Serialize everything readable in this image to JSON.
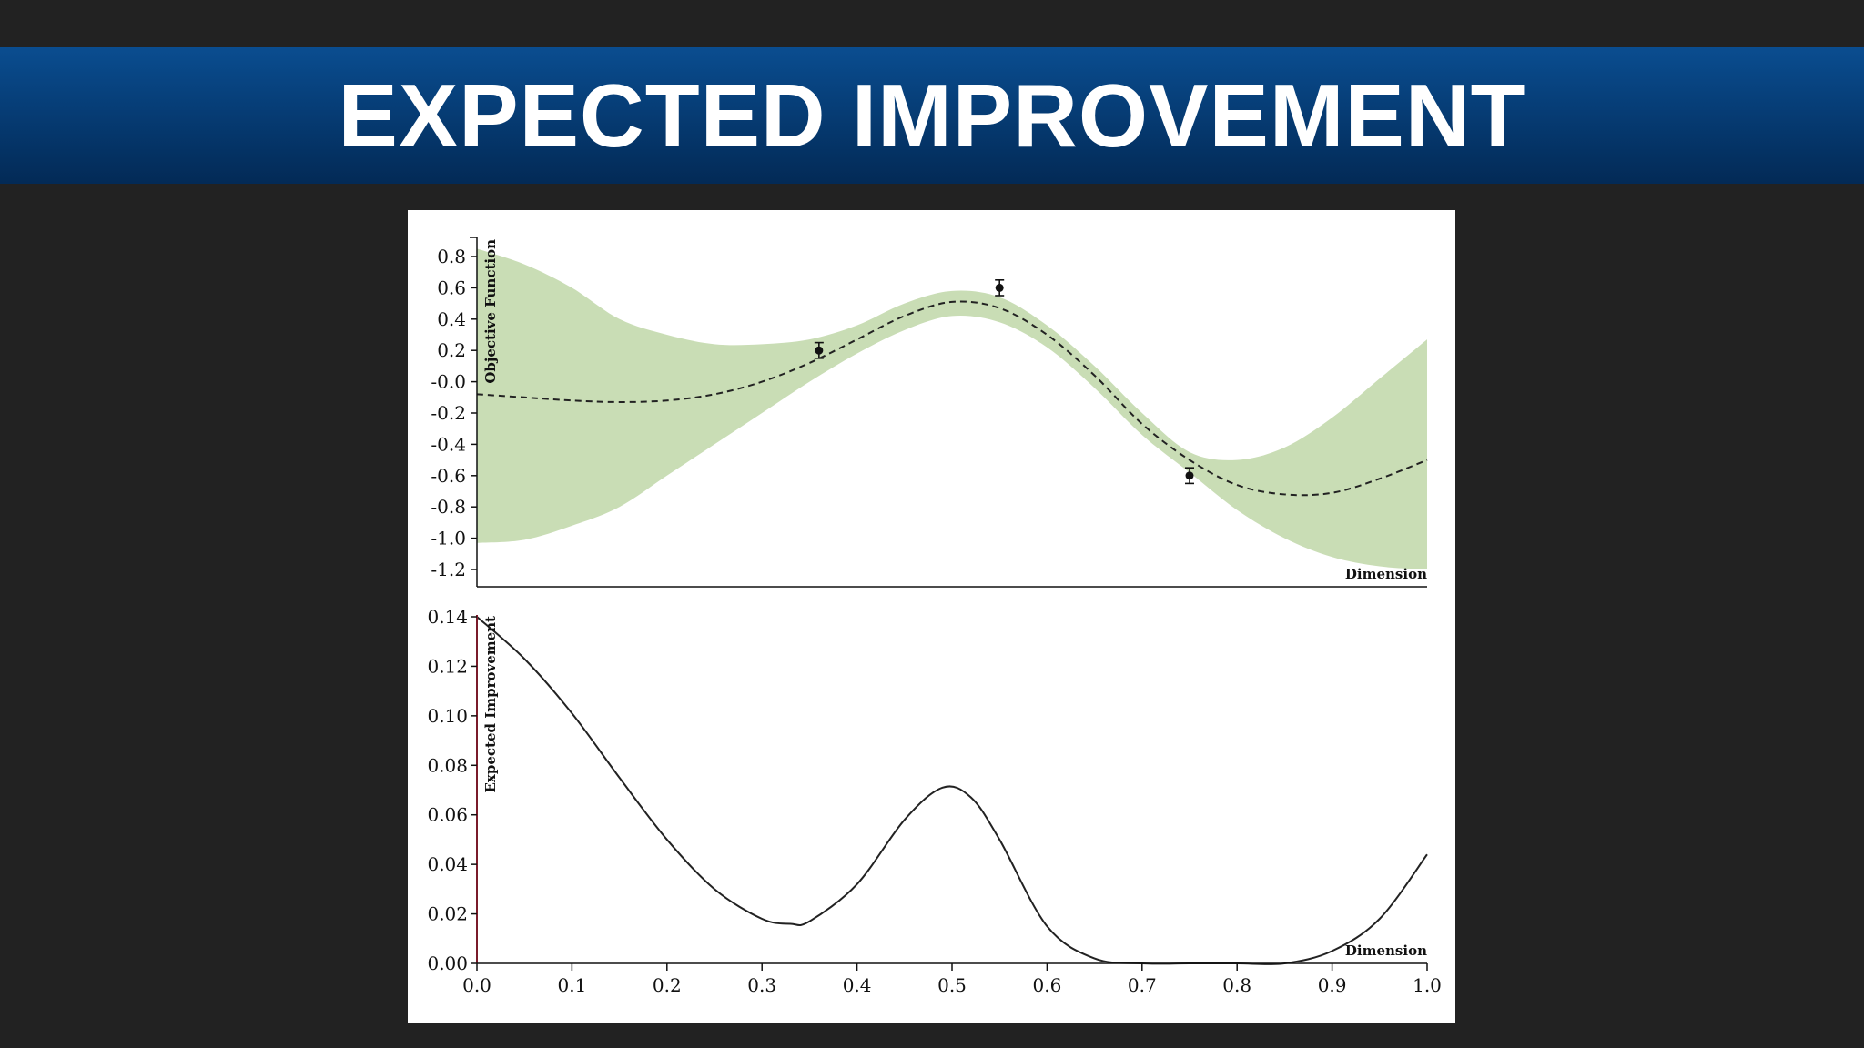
{
  "slide": {
    "title": "EXPECTED IMPROVEMENT"
  },
  "colors": {
    "background": "#222222",
    "banner": "#063d76",
    "title_text": "#ffffff",
    "uncertainty_band": "#c9ddb5",
    "mean_line": "#222222",
    "ei_line": "#222222",
    "lower_y_axis": "#7a1b2a"
  },
  "chart_data": [
    {
      "type": "area",
      "ylabel": "Objective Function",
      "xlabel": "Dimension",
      "xlim": [
        0.0,
        1.0
      ],
      "ylim": [
        -1.3,
        0.9
      ],
      "yticks": [
        "0.8",
        "0.6",
        "0.4",
        "0.2",
        "-0.0",
        "-0.2",
        "-0.4",
        "-0.6",
        "-0.8",
        "-1.0",
        "-1.2"
      ],
      "x": [
        0.0,
        0.05,
        0.1,
        0.15,
        0.2,
        0.25,
        0.3,
        0.35,
        0.4,
        0.45,
        0.5,
        0.55,
        0.6,
        0.65,
        0.7,
        0.75,
        0.8,
        0.85,
        0.9,
        0.95,
        1.0
      ],
      "series": [
        {
          "name": "",
          "style": "dashed",
          "values": [
            -0.08,
            -0.1,
            -0.12,
            -0.13,
            -0.12,
            -0.08,
            0.0,
            0.12,
            0.27,
            0.42,
            0.51,
            0.47,
            0.3,
            0.04,
            -0.27,
            -0.5,
            -0.66,
            -0.72,
            -0.71,
            -0.62,
            -0.5
          ]
        },
        {
          "name": "",
          "style": "band-upper",
          "values": [
            0.85,
            0.75,
            0.6,
            0.4,
            0.3,
            0.24,
            0.24,
            0.27,
            0.36,
            0.5,
            0.58,
            0.54,
            0.36,
            0.1,
            -0.2,
            -0.45,
            -0.5,
            -0.42,
            -0.23,
            0.02,
            0.27
          ]
        },
        {
          "name": "",
          "style": "band-lower",
          "values": [
            -1.03,
            -1.01,
            -0.92,
            -0.8,
            -0.6,
            -0.4,
            -0.2,
            0.0,
            0.18,
            0.33,
            0.42,
            0.38,
            0.22,
            -0.04,
            -0.34,
            -0.58,
            -0.82,
            -1.0,
            -1.12,
            -1.18,
            -1.2
          ]
        }
      ],
      "observations": [
        {
          "x": 0.36,
          "y": 0.2,
          "err": 0.05
        },
        {
          "x": 0.55,
          "y": 0.6,
          "err": 0.05
        },
        {
          "x": 0.75,
          "y": -0.6,
          "err": 0.05
        }
      ]
    },
    {
      "type": "line",
      "ylabel": "Expected Improvement",
      "xlabel": "Dimension",
      "xlim": [
        0.0,
        1.0
      ],
      "ylim": [
        0.0,
        0.14
      ],
      "xticks": [
        "0.0",
        "0.1",
        "0.2",
        "0.3",
        "0.4",
        "0.5",
        "0.6",
        "0.7",
        "0.8",
        "0.9",
        "1.0"
      ],
      "yticks": [
        "0.14",
        "0.12",
        "0.10",
        "0.08",
        "0.06",
        "0.04",
        "0.02",
        "0.00"
      ],
      "x": [
        0.0,
        0.05,
        0.1,
        0.15,
        0.2,
        0.25,
        0.3,
        0.33,
        0.35,
        0.4,
        0.45,
        0.49,
        0.52,
        0.55,
        0.6,
        0.65,
        0.7,
        0.75,
        0.8,
        0.85,
        0.9,
        0.95,
        1.0
      ],
      "series": [
        {
          "name": "",
          "values": [
            0.14,
            0.123,
            0.101,
            0.075,
            0.05,
            0.03,
            0.018,
            0.016,
            0.017,
            0.032,
            0.058,
            0.071,
            0.067,
            0.05,
            0.015,
            0.002,
            0.0,
            0.0,
            0.0,
            0.0,
            0.005,
            0.018,
            0.044
          ]
        }
      ]
    }
  ]
}
